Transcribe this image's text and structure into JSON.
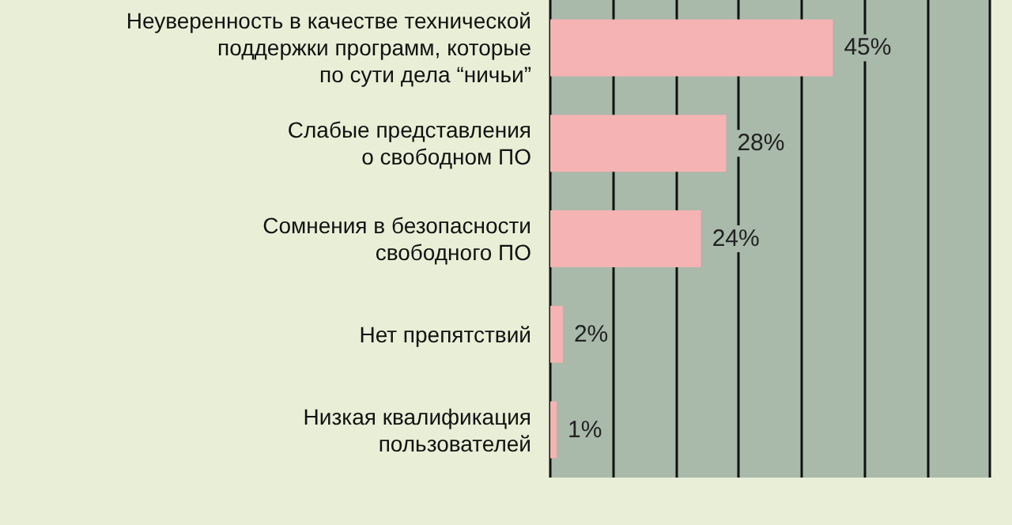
{
  "chart_data": {
    "type": "bar",
    "orientation": "horizontal",
    "categories": [
      "Неуверенность в качестве технической\nподдержки программ, которые\nпо сути дела “ничьи”",
      "Слабые представления\nо свободном ПО",
      "Сомнения в безопасности\nсвободного ПО",
      "Нет препятствий",
      "Низкая квалификация\nпользователей"
    ],
    "values": [
      45,
      28,
      24,
      2,
      1
    ],
    "value_labels": [
      "45%",
      "28%",
      "24%",
      "2%",
      "1%"
    ],
    "color": "#f5b3b3",
    "xlim": [
      0,
      70
    ],
    "xticks": [
      {
        "value": 0,
        "label": null
      },
      {
        "value": 10,
        "label": null
      },
      {
        "value": 20,
        "label": null
      },
      {
        "value": 30,
        "label": null
      },
      {
        "value": 40,
        "label": null
      },
      {
        "value": 50,
        "label": null
      },
      {
        "value": 60,
        "label": null
      },
      {
        "value": 70,
        "label": null
      }
    ],
    "grid": "x",
    "tick_labels": "y"
  }
}
